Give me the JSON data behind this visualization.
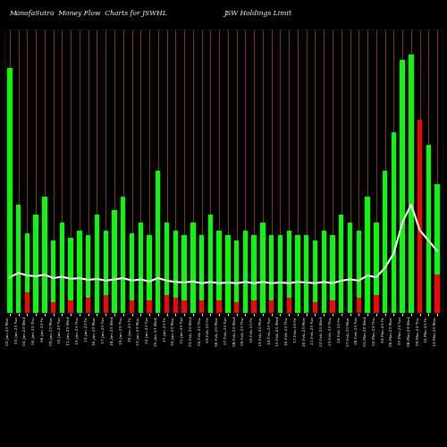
{
  "title_left": "ManofaSutra  Money Flow  Charts for JSWHL",
  "title_right": "JSW Holdings Limit",
  "bg_color": "#000000",
  "green": "#00ff00",
  "red": "#ff0000",
  "brown": "#8B4513",
  "white": "#ffffff",
  "categories": [
    "02-Jan-23 Mon",
    "03-Jan-23 Tue",
    "04-Jan-23 Wed",
    "05-Jan-23 Thu",
    "06-Jan-23 Fri",
    "09-Jan-23 Mon",
    "10-Jan-23 Tue",
    "11-Jan-23 Wed",
    "12-Jan-23 Thu",
    "13-Jan-23 Fri",
    "16-Jan-23 Mon",
    "17-Jan-23 Tue",
    "18-Jan-23 Wed",
    "19-Jan-23 Thu",
    "20-Jan-23 Fri",
    "23-Jan-23 Mon",
    "24-Jan-23 Tue",
    "25-Jan-23 Wed",
    "27-Jan-23 Fri",
    "30-Jan-23 Mon",
    "31-Jan-23 Tue",
    "01-Feb-23 Wed",
    "02-Feb-23 Thu",
    "03-Feb-23 Fri",
    "06-Feb-23 Mon",
    "07-Feb-23 Tue",
    "08-Feb-23 Wed",
    "09-Feb-23 Thu",
    "10-Feb-23 Fri",
    "13-Feb-23 Mon",
    "14-Feb-23 Tue",
    "15-Feb-23 Wed",
    "16-Feb-23 Thu",
    "17-Feb-23 Fri",
    "20-Feb-23 Mon",
    "21-Feb-23 Tue",
    "22-Feb-23 Wed",
    "23-Feb-23 Thu",
    "24-Feb-23 Fri",
    "27-Feb-23 Mon",
    "28-Feb-23 Tue",
    "01-Mar-23 Wed",
    "02-Mar-23 Thu",
    "03-Mar-23 Fri",
    "06-Mar-23 Mon",
    "07-Mar-23 Tue",
    "08-Mar-23 Wed",
    "09-Mar-23 Thu",
    "10-Mar-23 Fri",
    "13-Mar-23 Mon"
  ],
  "tall_bar_heights": [
    9.5,
    4.2,
    3.1,
    3.8,
    4.5,
    2.8,
    3.5,
    2.9,
    3.2,
    3.0,
    3.8,
    3.2,
    4.0,
    4.5,
    3.1,
    3.5,
    3.0,
    5.5,
    3.5,
    3.2,
    3.0,
    3.5,
    3.0,
    3.8,
    3.2,
    3.0,
    2.8,
    3.2,
    3.0,
    3.5,
    3.0,
    3.0,
    3.2,
    3.0,
    3.0,
    2.8,
    3.2,
    3.0,
    3.8,
    3.5,
    3.2,
    4.5,
    3.5,
    5.5,
    7.0,
    9.8,
    10.0,
    7.5,
    6.5,
    5.0
  ],
  "tall_bar_colors": [
    "g",
    "g",
    "g",
    "g",
    "g",
    "g",
    "g",
    "g",
    "g",
    "g",
    "g",
    "g",
    "g",
    "g",
    "g",
    "g",
    "g",
    "g",
    "g",
    "g",
    "g",
    "g",
    "g",
    "g",
    "g",
    "g",
    "g",
    "g",
    "g",
    "g",
    "g",
    "g",
    "g",
    "g",
    "g",
    "g",
    "g",
    "g",
    "g",
    "g",
    "g",
    "g",
    "g",
    "g",
    "g",
    "g",
    "g",
    "r",
    "g",
    "g"
  ],
  "small_bar_heights": [
    1.4,
    0.7,
    0.8,
    0.5,
    0.9,
    0.4,
    0.6,
    0.5,
    0.5,
    0.6,
    0.8,
    0.7,
    0.9,
    1.0,
    0.5,
    0.6,
    0.5,
    1.2,
    0.7,
    0.6,
    0.5,
    0.6,
    0.5,
    0.7,
    0.5,
    0.5,
    0.4,
    0.6,
    0.5,
    0.6,
    0.5,
    0.5,
    0.6,
    0.5,
    0.5,
    0.4,
    0.6,
    0.5,
    0.7,
    0.7,
    0.6,
    0.9,
    0.7,
    1.0,
    1.4,
    2.8,
    3.2,
    2.2,
    2.0,
    1.5
  ],
  "small_bar_colors": [
    "g",
    "g",
    "r",
    "g",
    "g",
    "r",
    "g",
    "r",
    "g",
    "r",
    "g",
    "r",
    "g",
    "g",
    "r",
    "g",
    "r",
    "g",
    "r",
    "r",
    "r",
    "g",
    "r",
    "g",
    "r",
    "g",
    "r",
    "g",
    "r",
    "g",
    "r",
    "g",
    "r",
    "g",
    "g",
    "r",
    "g",
    "r",
    "g",
    "g",
    "r",
    "g",
    "r",
    "g",
    "g",
    "g",
    "g",
    "r",
    "g",
    "r"
  ],
  "line_values": [
    1.38,
    1.55,
    1.45,
    1.42,
    1.48,
    1.35,
    1.4,
    1.32,
    1.35,
    1.28,
    1.32,
    1.25,
    1.3,
    1.35,
    1.25,
    1.3,
    1.22,
    1.35,
    1.25,
    1.2,
    1.18,
    1.22,
    1.15,
    1.2,
    1.15,
    1.18,
    1.15,
    1.2,
    1.15,
    1.2,
    1.15,
    1.18,
    1.15,
    1.2,
    1.18,
    1.15,
    1.2,
    1.15,
    1.25,
    1.3,
    1.25,
    1.45,
    1.38,
    1.75,
    2.3,
    3.5,
    4.2,
    3.2,
    2.8,
    2.4
  ]
}
